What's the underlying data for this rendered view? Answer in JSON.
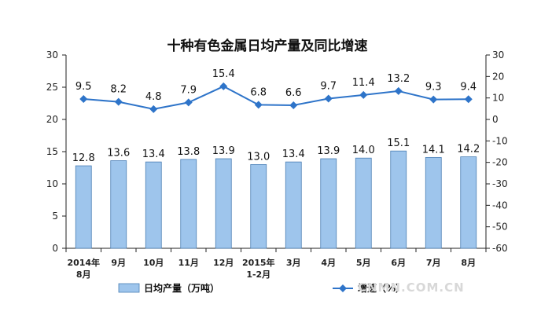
{
  "chart_data": {
    "type": "bar",
    "title": "十种有色金属日均产量及同比增速",
    "categories": [
      "2014年\n8月",
      "9月",
      "10月",
      "11月",
      "12月",
      "2015年\n1-2月",
      "3月",
      "4月",
      "5月",
      "6月",
      "7月",
      "8月"
    ],
    "series": [
      {
        "name": "日均产量（万吨）",
        "type": "bar",
        "axis": "left",
        "color": "#9ec5ec",
        "values": [
          12.8,
          13.6,
          13.4,
          13.8,
          13.9,
          13.0,
          13.4,
          13.9,
          14.0,
          15.1,
          14.1,
          14.2
        ],
        "labels": [
          "12.8",
          "13.6",
          "13.4",
          "13.8",
          "13.9",
          "13.0",
          "13.4",
          "13.9",
          "14.0",
          "15.1",
          "14.1",
          "14.2"
        ]
      },
      {
        "name": "增速（%）",
        "type": "line",
        "axis": "right",
        "color": "#2e74c9",
        "values": [
          9.5,
          8.2,
          4.8,
          7.9,
          15.4,
          6.8,
          6.6,
          9.7,
          11.4,
          13.2,
          9.3,
          9.4
        ],
        "labels": [
          "9.5",
          "8.2",
          "4.8",
          "7.9",
          "15.4",
          "6.8",
          "6.6",
          "9.7",
          "11.4",
          "13.2",
          "9.3",
          "9.4"
        ]
      }
    ],
    "left_axis": {
      "ylim": [
        0,
        30
      ],
      "ticks": [
        "0",
        "5",
        "10",
        "15",
        "20",
        "25",
        "30"
      ]
    },
    "right_axis": {
      "ylim": [
        -60,
        30
      ],
      "ticks": [
        "-60",
        "-50",
        "-40",
        "-30",
        "-20",
        "-10",
        "0",
        "10",
        "20",
        "30"
      ]
    },
    "legend": {
      "position": "bottom"
    },
    "grid": false
  },
  "watermark": "CNMN.COM.CN"
}
